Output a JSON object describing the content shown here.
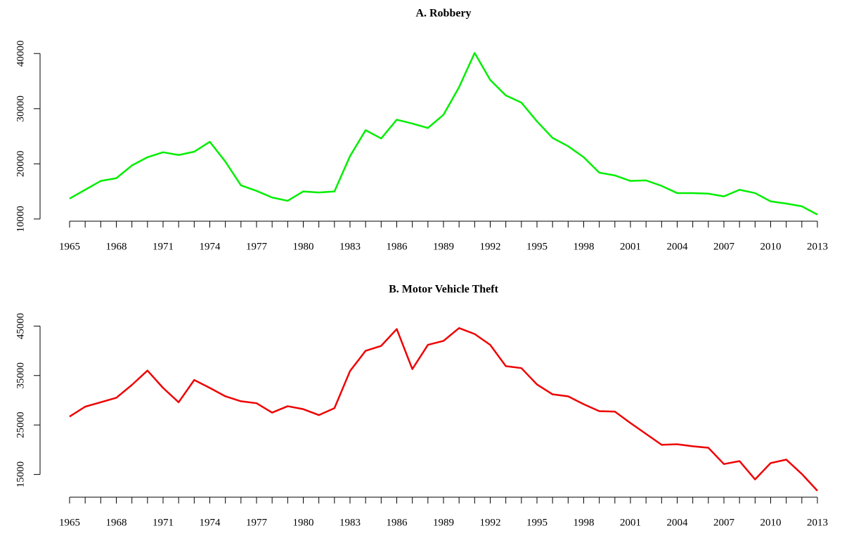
{
  "chart_data": [
    {
      "type": "line",
      "title": "A. Robbery",
      "x": [
        1965,
        1966,
        1967,
        1968,
        1969,
        1970,
        1971,
        1972,
        1973,
        1974,
        1975,
        1976,
        1977,
        1978,
        1979,
        1980,
        1981,
        1982,
        1983,
        1984,
        1985,
        1986,
        1987,
        1988,
        1989,
        1990,
        1991,
        1992,
        1993,
        1994,
        1995,
        1996,
        1997,
        1998,
        1999,
        2000,
        2001,
        2002,
        2003,
        2004,
        2005,
        2006,
        2007,
        2008,
        2009,
        2010,
        2011,
        2012,
        2013
      ],
      "series": [
        {
          "color": "#00ee00",
          "values": [
            13700,
            15300,
            16900,
            17400,
            19700,
            21200,
            22100,
            21600,
            22200,
            24000,
            20400,
            16100,
            15100,
            13900,
            13300,
            15000,
            14800,
            15000,
            21400,
            26100,
            24600,
            28000,
            27300,
            26500,
            28900,
            33900,
            40100,
            35200,
            32400,
            31100,
            27700,
            24700,
            23200,
            21200,
            18400,
            17900,
            16900,
            17000,
            16000,
            14700,
            14700,
            14600,
            14100,
            15300,
            14700,
            13200,
            12800,
            12300,
            10800
          ]
        }
      ],
      "xlim": [
        1965,
        2013
      ],
      "xticks": [
        1965,
        1968,
        1971,
        1974,
        1977,
        1980,
        1983,
        1986,
        1989,
        1992,
        1995,
        1998,
        2001,
        2004,
        2007,
        2010,
        2013
      ],
      "ylim": [
        9600,
        41300
      ],
      "yticks": [
        10000,
        20000,
        30000,
        40000
      ]
    },
    {
      "type": "line",
      "title": "B. Motor Vehicle Theft",
      "x": [
        1965,
        1966,
        1967,
        1968,
        1969,
        1970,
        1971,
        1972,
        1973,
        1974,
        1975,
        1976,
        1977,
        1978,
        1979,
        1980,
        1981,
        1982,
        1983,
        1984,
        1985,
        1986,
        1987,
        1988,
        1989,
        1990,
        1991,
        1992,
        1993,
        1994,
        1995,
        1996,
        1997,
        1998,
        1999,
        2000,
        2001,
        2002,
        2003,
        2004,
        2005,
        2006,
        2007,
        2008,
        2009,
        2010,
        2011,
        2012,
        2013
      ],
      "series": [
        {
          "color": "#ee0000",
          "values": [
            26700,
            28700,
            29600,
            30500,
            33100,
            36000,
            32500,
            29600,
            34100,
            32500,
            30800,
            29800,
            29400,
            27500,
            28800,
            28200,
            27000,
            28400,
            35900,
            40000,
            41000,
            44400,
            36300,
            41200,
            42000,
            44600,
            43400,
            41200,
            36900,
            36500,
            33200,
            31200,
            30800,
            29200,
            27800,
            27700,
            25400,
            23200,
            21000,
            21100,
            20700,
            20400,
            17100,
            17700,
            14000,
            17300,
            18000,
            15100,
            11700
          ]
        }
      ],
      "xlim": [
        1965,
        2013
      ],
      "xticks": [
        1965,
        1968,
        1971,
        1974,
        1977,
        1980,
        1983,
        1986,
        1989,
        1992,
        1995,
        1998,
        2001,
        2004,
        2007,
        2010,
        2013
      ],
      "ylim": [
        10400,
        45900
      ],
      "yticks": [
        15000,
        25000,
        35000,
        45000
      ]
    }
  ]
}
